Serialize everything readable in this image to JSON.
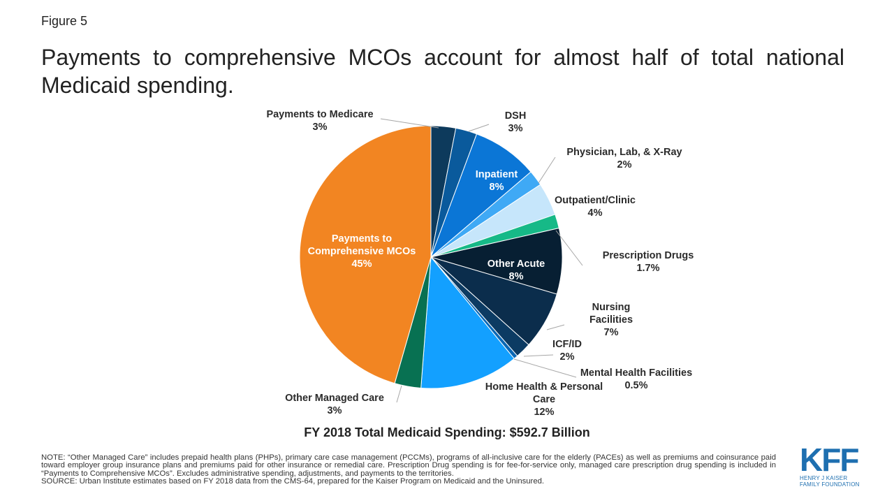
{
  "figure_label": "Figure 5",
  "title": "Payments to comprehensive MCOs account for almost half of total national Medicaid spending.",
  "subtitle": "FY 2018 Total Medicaid Spending: $592.7 Billion",
  "note": "NOTE: “Other Managed Care” includes prepaid health plans (PHPs), primary care case management (PCCMs), programs of all-inclusive care for the elderly (PACEs) as well as premiums and coinsurance paid toward employer group insurance plans and premiums paid for other insurance or remedial care. Prescription Drug spending is for fee-for-service only, managed care prescription drug spending is included in “Payments to Comprehensive MCOs”. Excludes administrative spending, adjustments, and payments to the territories.",
  "source": "SOURCE: Urban Institute estimates based on FY 2018 data from the CMS-64, prepared for the Kaiser Program on Medicaid and the Uninsured.",
  "logo": {
    "mark": "KFF",
    "org_line1": "HENRY J KAISER",
    "org_line2": "FAMILY FOUNDATION",
    "color": "#1e6fb0"
  },
  "chart_data": {
    "type": "pie",
    "title": "",
    "start_angle_deg": 0,
    "direction": "clockwise",
    "slices": [
      {
        "label": "Payments to Medicare",
        "value_label": "3%",
        "value": 3.0,
        "color": "#0d3a5c",
        "label_inside": false
      },
      {
        "label": "DSH",
        "value_label": "3%",
        "value": 2.6,
        "color": "#0a5a9c",
        "label_inside": false
      },
      {
        "label": "Inpatient",
        "value_label": "8%",
        "value": 8.0,
        "color": "#0b76d6",
        "label_inside": true
      },
      {
        "label": "Physician, Lab, & X-Ray",
        "value_label": "2%",
        "value": 1.9,
        "color": "#3fa9f5",
        "label_inside": false
      },
      {
        "label": "Outpatient/Clinic",
        "value_label": "4%",
        "value": 4.0,
        "color": "#c6e6fb",
        "label_inside": false
      },
      {
        "label": "Prescription Drugs",
        "value_label": "1.7%",
        "value": 1.7,
        "color": "#16b987",
        "label_inside": false
      },
      {
        "label": "Other Acute",
        "value_label": "8%",
        "value": 8.0,
        "color": "#071f33",
        "label_inside": true
      },
      {
        "label": "Nursing Facilities",
        "value_label": "7%",
        "value": 7.0,
        "color": "#0b2d4c",
        "label_inside": false
      },
      {
        "label": "ICF/ID",
        "value_label": "2%",
        "value": 1.9,
        "color": "#0c3b63",
        "label_inside": false
      },
      {
        "label": "Mental Health Facilities",
        "value_label": "0.5%",
        "value": 0.5,
        "color": "#0b68b5",
        "label_inside": false
      },
      {
        "label": "Home Health & Personal Care",
        "value_label": "12%",
        "value": 12.0,
        "color": "#13a0ff",
        "label_inside": false
      },
      {
        "label": "Other Managed Care",
        "value_label": "3%",
        "value": 3.2,
        "color": "#087152",
        "label_inside": false
      },
      {
        "label": "Payments to Comprehensive MCOs",
        "value_label": "45%",
        "value": 45.0,
        "color": "#f28522",
        "label_inside": true
      }
    ]
  }
}
